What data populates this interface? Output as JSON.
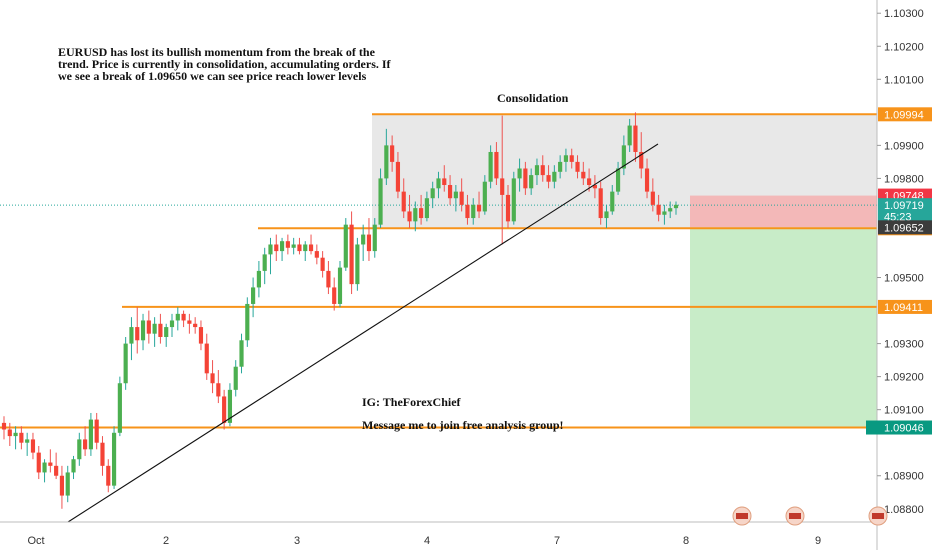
{
  "chart_data": {
    "type": "candlestick",
    "symbol": "EURUSD",
    "annotations": {
      "headline": [
        "EURUSD has lost its bullish momentum from the break of the",
        "trend. Price is currently in consolidation, accumulating orders. If",
        "we see a break of 1.09650 we can see price reach lower levels"
      ],
      "consolidation_label": "Consolidation",
      "ig_label": "IG: TheForexChief",
      "message_label": "Message me to join free analysis group!"
    },
    "x_ticks": [
      "Oct",
      "2",
      "3",
      "4",
      "7",
      "8",
      "9"
    ],
    "y_ticks": [
      "1.10300",
      "1.10200",
      "1.10100",
      "1.09900",
      "1.09800",
      "1.09500",
      "1.09300",
      "1.09200",
      "1.09100",
      "1.08900",
      "1.08800"
    ],
    "ylim": [
      1.0876,
      1.1034
    ],
    "levels": [
      {
        "name": "consolidation-top",
        "value": 1.09994,
        "label": "1.09994",
        "color": "#f7931a"
      },
      {
        "name": "consolidation-bottom",
        "value": 1.09649,
        "label": "1.09649",
        "color": "#f7931a"
      },
      {
        "name": "support-mid",
        "value": 1.09411,
        "label": "1.09411",
        "color": "#f7931a"
      },
      {
        "name": "support-low",
        "value": 1.09046,
        "label": "1.09046",
        "color": "#f7931a"
      }
    ],
    "price_tags": [
      {
        "name": "stop-loss-tag",
        "value": 1.09748,
        "label": "1.09748",
        "bg": "#f23645",
        "fg": "#ffffff"
      },
      {
        "name": "current-price-tag",
        "value": 1.09719,
        "label": "1.09719",
        "bg": "#26a69a",
        "fg": "#ffffff"
      },
      {
        "name": "countdown-tag",
        "value": 1.09685,
        "label": "45:23",
        "bg": "#26a69a",
        "fg": "#ffffff"
      },
      {
        "name": "entry-tag",
        "value": 1.09652,
        "label": "1.09652",
        "bg": "#3c3c3c",
        "fg": "#ffffff"
      },
      {
        "name": "target-tag",
        "value": 1.09046,
        "label": "1.09046",
        "bg": "#089981",
        "fg": "#ffffff"
      }
    ],
    "position": {
      "entry": 1.09652,
      "stop": 1.09748,
      "target": 1.09046,
      "loss_color": "#f3b8b8",
      "profit_color": "#c8ecc8"
    },
    "consolidation_box": {
      "top": 1.09994,
      "bottom": 1.09649,
      "color": "#e8e8e8"
    },
    "candles": [
      [
        1.0906,
        1.0908,
        1.0901,
        1.0904
      ],
      [
        1.0904,
        1.0906,
        1.0899,
        1.0902
      ],
      [
        1.0902,
        1.0905,
        1.0898,
        1.0903
      ],
      [
        1.0903,
        1.0905,
        1.0898,
        1.09
      ],
      [
        1.09,
        1.0903,
        1.0896,
        1.0901
      ],
      [
        1.0901,
        1.0903,
        1.0895,
        1.0897
      ],
      [
        1.0897,
        1.0899,
        1.0889,
        1.0891
      ],
      [
        1.0891,
        1.0895,
        1.0888,
        1.0894
      ],
      [
        1.0894,
        1.0898,
        1.0891,
        1.0893
      ],
      [
        1.0893,
        1.0897,
        1.0889,
        1.089
      ],
      [
        1.089,
        1.0893,
        1.088,
        1.0884
      ],
      [
        1.0884,
        1.0893,
        1.0882,
        1.0891
      ],
      [
        1.0891,
        1.0896,
        1.0889,
        1.0895
      ],
      [
        1.0895,
        1.0903,
        1.0893,
        1.0901
      ],
      [
        1.0901,
        1.0905,
        1.0896,
        1.0898
      ],
      [
        1.0898,
        1.0909,
        1.0896,
        1.0907
      ],
      [
        1.0907,
        1.0909,
        1.0898,
        1.09
      ],
      [
        1.09,
        1.0902,
        1.089,
        1.0893
      ],
      [
        1.0893,
        1.0895,
        1.0885,
        1.0887
      ],
      [
        1.0887,
        1.0905,
        1.0886,
        1.0903
      ],
      [
        1.0903,
        1.092,
        1.0902,
        1.0918
      ],
      [
        1.0918,
        1.0932,
        1.0916,
        1.093
      ],
      [
        1.093,
        1.0938,
        1.0925,
        1.0935
      ],
      [
        1.0935,
        1.0941,
        1.0927,
        1.0931
      ],
      [
        1.0931,
        1.0939,
        1.0928,
        1.0937
      ],
      [
        1.0937,
        1.094,
        1.093,
        1.0933
      ],
      [
        1.0933,
        1.0938,
        1.0929,
        1.0936
      ],
      [
        1.0936,
        1.0939,
        1.093,
        1.0932
      ],
      [
        1.0932,
        1.0936,
        1.0929,
        1.0935
      ],
      [
        1.0935,
        1.0939,
        1.0932,
        1.0937
      ],
      [
        1.0937,
        1.0941,
        1.0934,
        1.0939
      ],
      [
        1.0939,
        1.094,
        1.0935,
        1.0937
      ],
      [
        1.0937,
        1.0939,
        1.0933,
        1.0936
      ],
      [
        1.0936,
        1.0938,
        1.0933,
        1.0935
      ],
      [
        1.0935,
        1.0937,
        1.0928,
        1.093
      ],
      [
        1.093,
        1.0933,
        1.0919,
        1.0921
      ],
      [
        1.0921,
        1.0925,
        1.0915,
        1.0918
      ],
      [
        1.0918,
        1.0922,
        1.0912,
        1.0914
      ],
      [
        1.0914,
        1.0916,
        1.0904,
        1.0906
      ],
      [
        1.0906,
        1.0918,
        1.0905,
        1.0916
      ],
      [
        1.0916,
        1.0925,
        1.0914,
        1.0923
      ],
      [
        1.0923,
        1.0933,
        1.0921,
        1.0931
      ],
      [
        1.0931,
        1.0944,
        1.0929,
        1.0942
      ],
      [
        1.0942,
        1.095,
        1.0938,
        1.0947
      ],
      [
        1.0947,
        1.0955,
        1.0944,
        1.0952
      ],
      [
        1.0952,
        1.0959,
        1.0948,
        1.0957
      ],
      [
        1.0957,
        1.0962,
        1.0951,
        1.096
      ],
      [
        1.096,
        1.0963,
        1.0955,
        1.0958
      ],
      [
        1.0958,
        1.0962,
        1.0955,
        1.0961
      ],
      [
        1.0961,
        1.0963,
        1.0957,
        1.0959
      ],
      [
        1.0959,
        1.0962,
        1.0957,
        1.096
      ],
      [
        1.096,
        1.0962,
        1.0957,
        1.0958
      ],
      [
        1.0958,
        1.0961,
        1.0955,
        1.096
      ],
      [
        1.096,
        1.0963,
        1.0957,
        1.0958
      ],
      [
        1.0958,
        1.096,
        1.0954,
        1.0956
      ],
      [
        1.0956,
        1.0958,
        1.095,
        1.0952
      ],
      [
        1.0952,
        1.0955,
        1.0945,
        1.0947
      ],
      [
        1.0947,
        1.095,
        1.094,
        1.0942
      ],
      [
        1.0942,
        1.0955,
        1.0941,
        1.0953
      ],
      [
        1.0953,
        1.0968,
        1.0952,
        1.0966
      ],
      [
        1.0966,
        1.097,
        1.0945,
        1.0948
      ],
      [
        1.0948,
        1.0962,
        1.0946,
        1.096
      ],
      [
        1.096,
        1.0966,
        1.0955,
        1.0963
      ],
      [
        1.0963,
        1.0968,
        1.0955,
        1.0958
      ],
      [
        1.0958,
        1.0968,
        1.0956,
        1.0966
      ],
      [
        1.0966,
        1.0983,
        1.0965,
        1.098
      ],
      [
        1.098,
        1.0995,
        1.0978,
        1.099
      ],
      [
        1.099,
        1.0993,
        1.0982,
        1.0985
      ],
      [
        1.0985,
        1.0988,
        1.0974,
        1.0976
      ],
      [
        1.0976,
        1.098,
        1.0968,
        1.097
      ],
      [
        1.097,
        1.0975,
        1.0965,
        1.0967
      ],
      [
        1.0967,
        1.0973,
        1.0964,
        1.0971
      ],
      [
        1.0971,
        1.0975,
        1.0966,
        1.0968
      ],
      [
        1.0968,
        1.0976,
        1.0967,
        1.0974
      ],
      [
        1.0974,
        1.0979,
        1.0971,
        1.0977
      ],
      [
        1.0977,
        1.0982,
        1.0974,
        1.098
      ],
      [
        1.098,
        1.0984,
        1.0976,
        1.0978
      ],
      [
        1.0978,
        1.0981,
        1.0972,
        1.0974
      ],
      [
        1.0974,
        1.0978,
        1.097,
        1.0976
      ],
      [
        1.0976,
        1.098,
        1.097,
        1.0972
      ],
      [
        1.0972,
        1.0975,
        1.0966,
        1.0968
      ],
      [
        1.0968,
        1.0974,
        1.0966,
        1.0972
      ],
      [
        1.0972,
        1.0976,
        1.0968,
        1.097
      ],
      [
        1.097,
        1.0981,
        1.0969,
        1.0979
      ],
      [
        1.0979,
        1.099,
        1.0977,
        1.0988
      ],
      [
        1.0988,
        1.0991,
        1.0978,
        1.098
      ],
      [
        1.098,
        1.0999,
        1.096,
        1.0975
      ],
      [
        1.0975,
        1.0978,
        1.0965,
        1.0967
      ],
      [
        1.0967,
        1.0982,
        1.0966,
        1.098
      ],
      [
        1.098,
        1.0986,
        1.0976,
        1.0983
      ],
      [
        1.0983,
        1.0985,
        1.0975,
        1.0977
      ],
      [
        1.0977,
        1.0983,
        1.0975,
        1.0981
      ],
      [
        1.0981,
        1.0986,
        1.0978,
        1.0984
      ],
      [
        1.0984,
        1.0987,
        1.0979,
        1.0981
      ],
      [
        1.0981,
        1.0984,
        1.0977,
        1.0979
      ],
      [
        1.0979,
        1.0984,
        1.0977,
        1.0982
      ],
      [
        1.0982,
        1.0987,
        1.098,
        1.0985
      ],
      [
        1.0985,
        1.0989,
        1.0982,
        1.0987
      ],
      [
        1.0987,
        1.0989,
        1.0983,
        1.0985
      ],
      [
        1.0985,
        1.0987,
        1.098,
        1.0982
      ],
      [
        1.0982,
        1.0985,
        1.0978,
        1.098
      ],
      [
        1.098,
        1.0983,
        1.0976,
        1.0978
      ],
      [
        1.0978,
        1.0981,
        1.0974,
        1.0977
      ],
      [
        1.0977,
        1.0979,
        1.0966,
        1.0968
      ],
      [
        1.0968,
        1.0972,
        1.0965,
        1.097
      ],
      [
        1.097,
        1.0978,
        1.0969,
        1.0976
      ],
      [
        1.0976,
        1.0985,
        1.0975,
        1.0983
      ],
      [
        1.0983,
        1.0993,
        1.0981,
        1.099
      ],
      [
        1.099,
        1.0998,
        1.0988,
        1.0996
      ],
      [
        1.0996,
        1.1,
        1.0985,
        1.0988
      ],
      [
        1.0988,
        1.0994,
        1.098,
        1.0983
      ],
      [
        1.0983,
        1.0986,
        1.0974,
        1.0976
      ],
      [
        1.0976,
        1.098,
        1.097,
        1.0972
      ],
      [
        1.0972,
        1.0975,
        1.0967,
        1.0969
      ],
      [
        1.0969,
        1.0972,
        1.0966,
        1.097
      ],
      [
        1.097,
        1.0973,
        1.0968,
        1.0971
      ],
      [
        1.0971,
        1.0973,
        1.0969,
        1.0972
      ]
    ]
  }
}
